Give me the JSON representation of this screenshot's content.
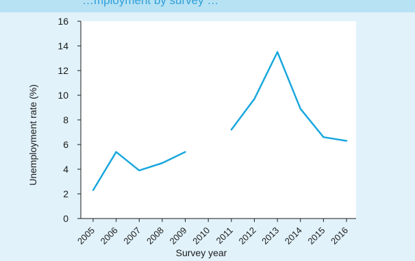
{
  "header": {
    "title": "…mployment by survey …"
  },
  "chart_data": {
    "type": "line",
    "title": "",
    "xlabel": "Survey year",
    "ylabel": "Unemployment rate (%)",
    "categories": [
      "2005",
      "2006",
      "2007",
      "2008",
      "2009",
      "2010",
      "2011",
      "2012",
      "2013",
      "2014",
      "2015",
      "2016"
    ],
    "series": [
      {
        "color": "#18a7dd",
        "values": [
          2.3,
          5.4,
          3.9,
          4.5,
          5.4,
          null,
          7.2,
          9.7,
          13.5,
          8.9,
          6.6,
          6.3
        ]
      }
    ],
    "yticks": [
      0,
      2,
      4,
      6,
      8,
      10,
      12,
      14,
      16
    ],
    "ylim": [
      0,
      16
    ],
    "grid": false,
    "legend": "none",
    "colors": {
      "panel_background": "#e1f2fa",
      "title_band": "#b7e2f4",
      "title_text": "#2e9fd8",
      "plot_background": "#ffffff"
    }
  }
}
